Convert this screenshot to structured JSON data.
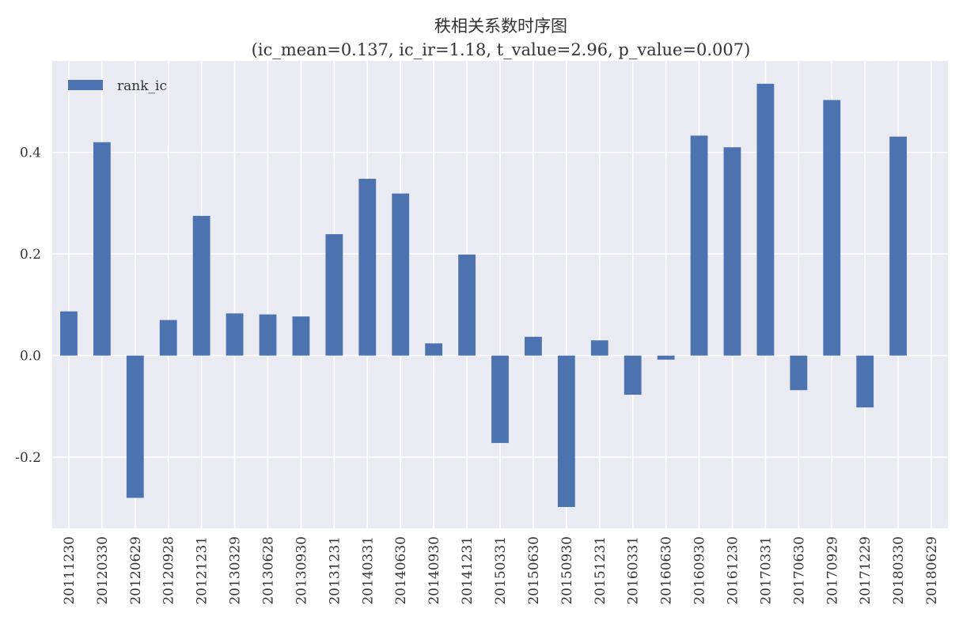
{
  "chart_data": {
    "type": "bar",
    "title": "秩相关系数时序图",
    "subtitle": "(ic_mean=0.137, ic_ir=1.18, t_value=2.96, p_value=0.007)",
    "xlabel": "",
    "ylabel": "",
    "ylim": [
      -0.34,
      0.58
    ],
    "yticks": [
      -0.2,
      0.0,
      0.2,
      0.4
    ],
    "ytick_labels": [
      "-0.2",
      "0.0",
      "0.2",
      "0.4"
    ],
    "grid": true,
    "legend_position": "top-left",
    "categories": [
      "20111230",
      "20120330",
      "20120629",
      "20120928",
      "20121231",
      "20130329",
      "20130628",
      "20130930",
      "20131231",
      "20140331",
      "20140630",
      "20140930",
      "20141231",
      "20150331",
      "20150630",
      "20150930",
      "20151231",
      "20160331",
      "20160630",
      "20160930",
      "20161230",
      "20170331",
      "20170630",
      "20170929",
      "20171229",
      "20180330",
      "20180629"
    ],
    "series": [
      {
        "name": "rank_ic",
        "color": "#4c72b0",
        "values": [
          0.087,
          0.42,
          -0.28,
          0.07,
          0.275,
          0.083,
          0.081,
          0.077,
          0.239,
          0.348,
          0.319,
          0.024,
          0.199,
          -0.172,
          0.037,
          -0.298,
          0.03,
          -0.077,
          -0.008,
          0.433,
          0.41,
          0.535,
          -0.068,
          0.503,
          -0.102,
          0.431,
          null
        ]
      }
    ],
    "colors": {
      "background": "#eaeaf2",
      "grid": "#ffffff",
      "bar": "#4c72b0"
    }
  }
}
